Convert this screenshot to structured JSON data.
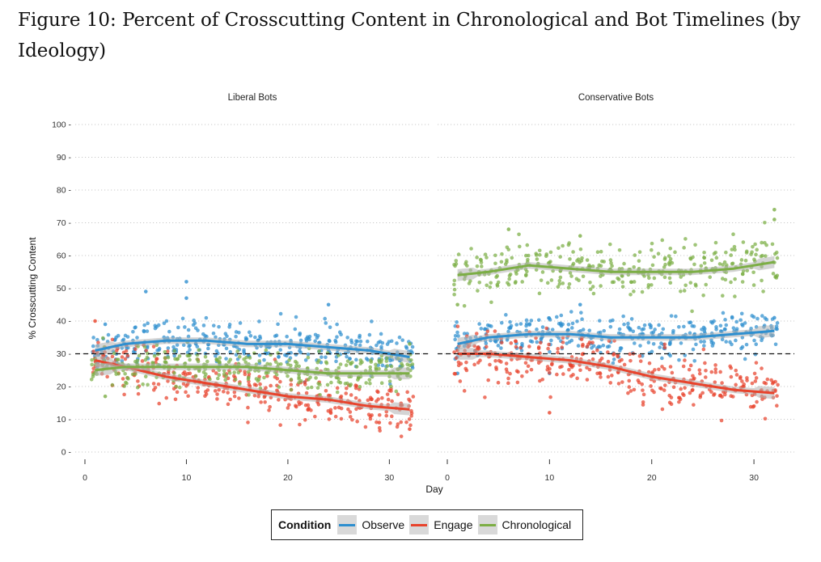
{
  "figure": {
    "title": "Figure 10: Percent of Crosscutting Content in Chronological and Bot Timelines (by Ideology)"
  },
  "legend": {
    "title": "Condition",
    "items": [
      {
        "label": "Observe",
        "color": "#2E8FCF"
      },
      {
        "label": "Engage",
        "color": "#E8432C"
      },
      {
        "label": "Chronological",
        "color": "#7CAE45"
      }
    ]
  },
  "chart_data": {
    "type": "scatter",
    "xlabel": "Day",
    "ylabel": "% Crosscutting Content",
    "ylim": [
      0,
      100
    ],
    "xlim": [
      0,
      33
    ],
    "x_ticks": [
      0,
      10,
      20,
      30
    ],
    "y_ticks": [
      0,
      10,
      20,
      30,
      40,
      50,
      60,
      70,
      80,
      90,
      100
    ],
    "grid": "dotted horizontal",
    "reference_line": {
      "y": 30,
      "style": "dashed"
    },
    "legend_position": "bottom",
    "panels": [
      {
        "name": "Liberal Bots",
        "series": [
          {
            "name": "Observe",
            "smooth_x": [
              1,
              4,
              8,
              12,
              16,
              20,
              24,
              28,
              32
            ],
            "smooth_y": [
              31,
              33,
              34,
              34,
              33,
              33,
              32,
              31,
              29
            ],
            "scatter_center": 32,
            "scatter_spread": 3.2,
            "outliers": [
              [
                6,
                49
              ],
              [
                10,
                52
              ],
              [
                10,
                47
              ],
              [
                24,
                45
              ],
              [
                2,
                39
              ]
            ]
          },
          {
            "name": "Engage",
            "smooth_x": [
              1,
              4,
              8,
              12,
              16,
              20,
              24,
              28,
              32
            ],
            "smooth_y": [
              28,
              26,
              23,
              21,
              19,
              17,
              16,
              14,
              13
            ],
            "scatter_center": 19,
            "scatter_spread": 3.5,
            "outliers": [
              [
                1,
                40
              ],
              [
                32,
                7
              ],
              [
                29,
                9
              ]
            ]
          },
          {
            "name": "Chronological",
            "smooth_x": [
              1,
              4,
              8,
              12,
              16,
              20,
              24,
              28,
              32
            ],
            "smooth_y": [
              25,
              26,
              26,
              26,
              26,
              25,
              24,
              24,
              24
            ],
            "scatter_center": 25,
            "scatter_spread": 3.0,
            "outliers": [
              [
                2,
                17
              ],
              [
                32,
                33
              ]
            ]
          }
        ]
      },
      {
        "name": "Conservative Bots",
        "series": [
          {
            "name": "Observe",
            "smooth_x": [
              1,
              4,
              8,
              12,
              16,
              20,
              24,
              28,
              32
            ],
            "smooth_y": [
              33,
              35,
              36,
              36,
              35,
              35,
              35,
              36,
              37
            ],
            "scatter_center": 36,
            "scatter_spread": 3.0,
            "outliers": [
              [
                13,
                45
              ],
              [
                10,
                24
              ],
              [
                1,
                24
              ],
              [
                32,
                41
              ]
            ]
          },
          {
            "name": "Engage",
            "smooth_x": [
              1,
              4,
              8,
              12,
              16,
              20,
              24,
              28,
              32
            ],
            "smooth_y": [
              30,
              30,
              29,
              28,
              26,
              23,
              21,
              19,
              18
            ],
            "scatter_center": 25,
            "scatter_spread": 4.0,
            "outliers": [
              [
                10,
                12
              ],
              [
                1,
                31
              ],
              [
                30,
                14
              ]
            ]
          },
          {
            "name": "Chronological",
            "smooth_x": [
              1,
              4,
              8,
              12,
              16,
              20,
              24,
              28,
              32
            ],
            "smooth_y": [
              54,
              55,
              57,
              56,
              55,
              55,
              55,
              56,
              58
            ],
            "scatter_center": 56,
            "scatter_spread": 4.0,
            "outliers": [
              [
                32,
                74
              ],
              [
                32,
                71
              ],
              [
                6,
                68
              ],
              [
                13,
                66
              ],
              [
                1,
                45
              ]
            ]
          }
        ]
      }
    ]
  }
}
